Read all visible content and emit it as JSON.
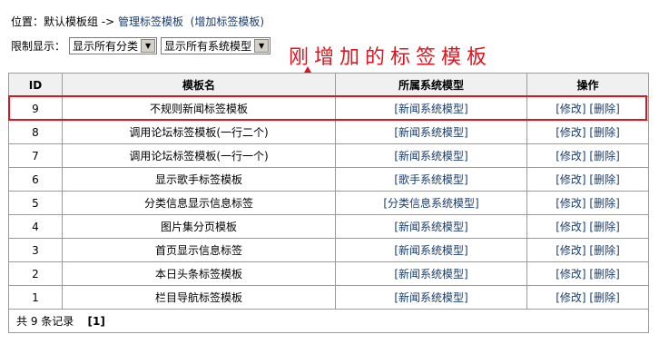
{
  "breadcrumb": {
    "prefix": "位置：默认模板组 -> ",
    "manage": "管理标签模板",
    "add": "(增加标签模板)"
  },
  "filter": {
    "label": "限制显示：",
    "category": "显示所有分类",
    "model": "显示所有系统模型"
  },
  "annotation": "刚增加的标签模板",
  "table": {
    "headers": [
      "ID",
      "模板名",
      "所属系统模型",
      "操作"
    ],
    "rows": [
      {
        "id": "9",
        "name": "不规则新闻标签模板",
        "model": "[新闻系统模型]"
      },
      {
        "id": "8",
        "name": "调用论坛标签模板(一行二个)",
        "model": "[新闻系统模型]"
      },
      {
        "id": "7",
        "name": "调用论坛标签模板(一行一个)",
        "model": "[新闻系统模型]"
      },
      {
        "id": "6",
        "name": "显示歌手标签模板",
        "model": "[歌手系统模型]"
      },
      {
        "id": "5",
        "name": "分类信息显示信息标签",
        "model": "[分类信息系统模型]"
      },
      {
        "id": "4",
        "name": "图片集分页模板",
        "model": "[新闻系统模型]"
      },
      {
        "id": "3",
        "name": "首页显示信息标签",
        "model": "[新闻系统模型]"
      },
      {
        "id": "2",
        "name": "本日头条标签模板",
        "model": "[新闻系统模型]"
      },
      {
        "id": "1",
        "name": "栏目导航标签模板",
        "model": "[新闻系统模型]"
      }
    ],
    "edit": "[修改]",
    "delete": "[删除]",
    "footer": {
      "count": "共 9 条记录",
      "page": "[1]"
    }
  },
  "colors": {
    "accent": "#e0141e",
    "link": "#1a3d6b"
  }
}
